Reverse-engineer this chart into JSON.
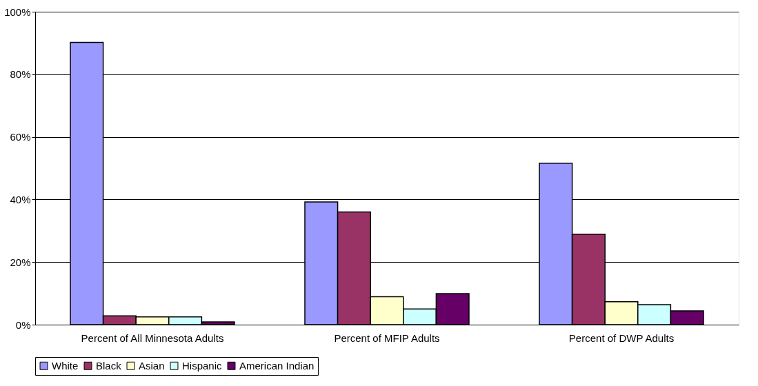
{
  "chart_data": {
    "type": "bar",
    "categories": [
      "Percent of All Minnesota Adults",
      "Percent of MFIP Adults",
      "Percent of DWP Adults"
    ],
    "series": [
      {
        "name": "White",
        "color": "#9999ff",
        "values": [
          90.2,
          39.2,
          51.6
        ]
      },
      {
        "name": "Black",
        "color": "#993366",
        "values": [
          2.8,
          36.0,
          28.9
        ]
      },
      {
        "name": "Asian",
        "color": "#ffffcc",
        "values": [
          2.5,
          8.9,
          7.3
        ]
      },
      {
        "name": "Hispanic",
        "color": "#ccffff",
        "values": [
          2.5,
          5.0,
          6.4
        ]
      },
      {
        "name": "American Indian",
        "color": "#660066",
        "values": [
          0.9,
          9.9,
          4.4
        ]
      }
    ],
    "ylim": [
      0,
      100
    ],
    "yticks": [
      {
        "value": 0,
        "label": "0%"
      },
      {
        "value": 20,
        "label": "20%"
      },
      {
        "value": 40,
        "label": "40%"
      },
      {
        "value": 60,
        "label": "60%"
      },
      {
        "value": 80,
        "label": "80%"
      },
      {
        "value": 100,
        "label": "100%"
      }
    ],
    "grid": "y",
    "legend": "bottom"
  }
}
